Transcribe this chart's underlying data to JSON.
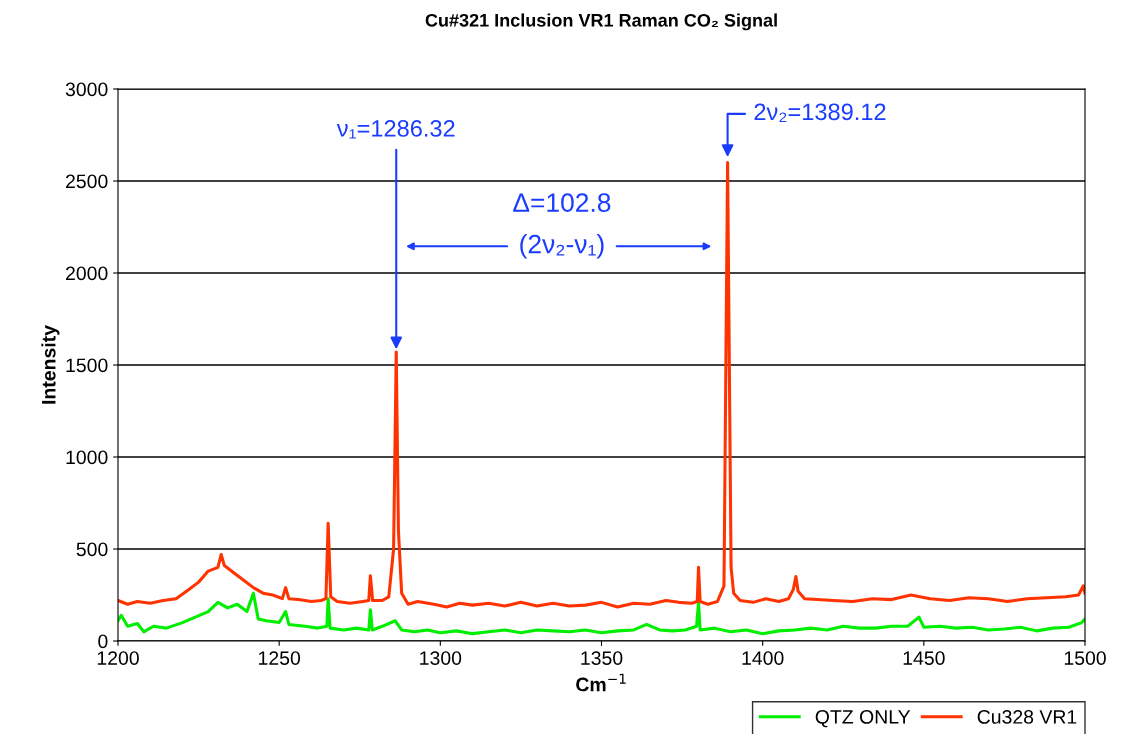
{
  "chart_data": {
    "type": "line",
    "title": "Cu#321 Inclusion VR1 Raman CO₂ Signal",
    "xlabel": "Cm$^{−1}$",
    "ylabel": "Intensity",
    "xlim": [
      1200,
      1500
    ],
    "xticks": [
      1200,
      1250,
      1300,
      1350,
      1400,
      1450,
      1500
    ],
    "ylim": [
      0,
      3000
    ],
    "yticks": [
      0,
      500,
      1000,
      1500,
      2000,
      2500,
      3000
    ],
    "grid": "y",
    "legend": "bottom right",
    "marker": "none",
    "line_style": "solid",
    "series": [
      {
        "name": "QTZ ONLY",
        "color": "#00ee00",
        "x": [
          1200,
          1201,
          1203,
          1206,
          1208,
          1211,
          1215,
          1220,
          1224,
          1228,
          1231,
          1234,
          1237,
          1240,
          1242,
          1243.5,
          1246,
          1250,
          1252,
          1253,
          1258,
          1262,
          1264.8,
          1265.2,
          1265.8,
          1270,
          1274,
          1277.8,
          1278.3,
          1278.9,
          1282,
          1286,
          1288,
          1292,
          1296,
          1300,
          1305,
          1310,
          1315,
          1320,
          1325,
          1330,
          1335,
          1340,
          1345,
          1350,
          1355,
          1360,
          1364,
          1368,
          1372,
          1376,
          1379.5,
          1380.1,
          1380.6,
          1385,
          1390,
          1395,
          1400,
          1405,
          1410,
          1415,
          1420,
          1425,
          1430,
          1435,
          1440,
          1445,
          1448.5,
          1450,
          1455,
          1460,
          1465,
          1470,
          1475,
          1480,
          1485,
          1490,
          1495,
          1499,
          1500
        ],
        "values": [
          110,
          140,
          80,
          95,
          50,
          80,
          70,
          100,
          130,
          160,
          210,
          180,
          200,
          160,
          260,
          120,
          110,
          100,
          160,
          90,
          80,
          70,
          80,
          230,
          70,
          60,
          70,
          60,
          170,
          60,
          80,
          110,
          60,
          50,
          60,
          45,
          55,
          40,
          50,
          60,
          45,
          60,
          55,
          50,
          60,
          45,
          55,
          60,
          90,
          60,
          55,
          60,
          80,
          210,
          60,
          70,
          50,
          60,
          40,
          55,
          60,
          70,
          60,
          80,
          70,
          70,
          80,
          80,
          130,
          75,
          80,
          70,
          75,
          60,
          65,
          75,
          55,
          70,
          75,
          100,
          120
        ]
      },
      {
        "name": "Cu328 VR1",
        "color": "#ff3300",
        "x": [
          1200,
          1203,
          1206,
          1210,
          1214,
          1218,
          1222,
          1225,
          1228,
          1231,
          1232,
          1233,
          1236,
          1239,
          1242,
          1245,
          1248,
          1251,
          1252,
          1253,
          1256,
          1260,
          1263,
          1264.5,
          1265.2,
          1266,
          1268,
          1272,
          1276,
          1277.8,
          1278.3,
          1279,
          1282,
          1284,
          1285.5,
          1286.32,
          1287,
          1288,
          1290,
          1293,
          1298,
          1302,
          1306,
          1310,
          1315,
          1320,
          1325,
          1330,
          1335,
          1340,
          1345,
          1350,
          1355,
          1360,
          1365,
          1370,
          1374,
          1378,
          1379.7,
          1380.1,
          1380.6,
          1383,
          1386,
          1388,
          1389.12,
          1390.2,
          1391,
          1393,
          1397,
          1401,
          1405,
          1408,
          1409.5,
          1410.3,
          1411,
          1413,
          1417,
          1422,
          1428,
          1434,
          1440,
          1446,
          1452,
          1458,
          1464,
          1470,
          1476,
          1482,
          1488,
          1494,
          1498,
          1499.5,
          1500
        ],
        "values": [
          220,
          200,
          215,
          205,
          220,
          230,
          280,
          320,
          380,
          400,
          470,
          410,
          370,
          330,
          290,
          260,
          250,
          230,
          290,
          230,
          225,
          215,
          220,
          230,
          640,
          240,
          215,
          205,
          215,
          220,
          355,
          220,
          220,
          240,
          500,
          1570,
          600,
          260,
          200,
          215,
          200,
          185,
          205,
          195,
          205,
          190,
          210,
          190,
          205,
          190,
          195,
          210,
          185,
          205,
          200,
          220,
          210,
          205,
          215,
          400,
          215,
          200,
          215,
          300,
          2600,
          400,
          260,
          220,
          210,
          230,
          215,
          230,
          280,
          350,
          270,
          230,
          225,
          220,
          215,
          230,
          225,
          250,
          230,
          220,
          235,
          230,
          215,
          230,
          235,
          240,
          250,
          300,
          260
        ]
      }
    ],
    "annotations": [
      {
        "text": "ν₁=1286.32",
        "x": 1286.32,
        "y": 1570
      },
      {
        "text": "2ν₂=1389.12",
        "x": 1389.12,
        "y": 2600
      },
      "Δ=102.8",
      "(2ν₂-ν₁)"
    ]
  }
}
